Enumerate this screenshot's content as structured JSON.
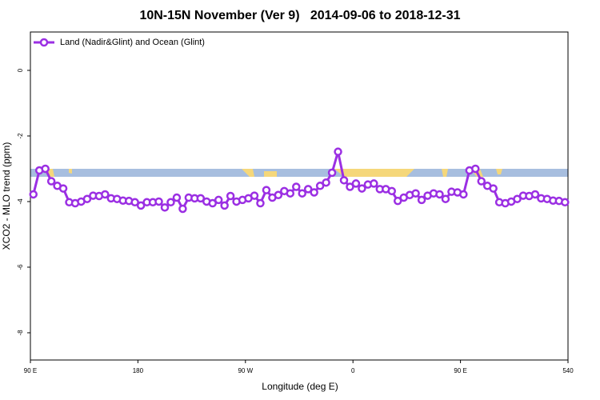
{
  "chart_data": {
    "type": "line",
    "title": "10N-15N November (Ver 9)   2014-09-06 to 2018-12-31",
    "xlabel": "Longitude (deg E)",
    "ylabel": "XCO2 - MLO trend (ppm)",
    "x": [
      92.5,
      97.5,
      102.5,
      107.5,
      112.5,
      117.5,
      122.5,
      127.5,
      132.5,
      137.5,
      142.5,
      147.5,
      152.5,
      157.5,
      162.5,
      167.5,
      172.5,
      177.5,
      182.5,
      187.5,
      192.5,
      197.5,
      202.5,
      207.5,
      212.5,
      217.5,
      222.5,
      227.5,
      232.5,
      237.5,
      242.5,
      247.5,
      252.5,
      257.5,
      262.5,
      267.5,
      272.5,
      277.5,
      282.5,
      287.5,
      292.5,
      297.5,
      302.5,
      307.5,
      312.5,
      317.5,
      322.5,
      327.5,
      332.5,
      337.5,
      342.5,
      347.5,
      352.5,
      357.5,
      362.5,
      367.5,
      372.5,
      377.5,
      382.5,
      387.5,
      392.5,
      397.5,
      402.5,
      407.5,
      412.5,
      417.5,
      422.5,
      427.5,
      432.5,
      437.5,
      442.5,
      447.5,
      452.5,
      457.5,
      462.5,
      467.5,
      472.5,
      477.5,
      482.5,
      487.5,
      492.5,
      497.5,
      502.5,
      507.5,
      512.5,
      517.5,
      522.5,
      527.5,
      532.5,
      537.5
    ],
    "series": [
      {
        "name": "Land (Nadir&Glint) and Ocean (Glint)",
        "color": "#9b2fe3",
        "values": [
          -3.78,
          -3.05,
          -3.0,
          -3.38,
          -3.52,
          -3.6,
          -4.02,
          -4.05,
          -4.0,
          -3.92,
          -3.82,
          -3.83,
          -3.78,
          -3.9,
          -3.92,
          -3.97,
          -3.98,
          -4.02,
          -4.12,
          -4.02,
          -4.02,
          -4.0,
          -4.18,
          -4.02,
          -3.88,
          -4.22,
          -3.88,
          -3.9,
          -3.9,
          -4.0,
          -4.05,
          -3.95,
          -4.12,
          -3.83,
          -4.0,
          -3.95,
          -3.9,
          -3.82,
          -4.05,
          -3.65,
          -3.88,
          -3.8,
          -3.68,
          -3.75,
          -3.55,
          -3.75,
          -3.62,
          -3.72,
          -3.52,
          -3.42,
          -3.12,
          -2.48,
          -3.35,
          -3.55,
          -3.45,
          -3.6,
          -3.48,
          -3.45,
          -3.62,
          -3.62,
          -3.68,
          -3.98,
          -3.88,
          -3.8,
          -3.75,
          -3.95,
          -3.82,
          -3.75,
          -3.78,
          -3.92,
          -3.7,
          -3.72,
          -3.78,
          -3.05,
          -3.0,
          -3.38,
          -3.52,
          -3.6,
          -4.02,
          -4.05,
          -4.0,
          -3.92,
          -3.82,
          -3.83,
          -3.78,
          -3.9,
          -3.92,
          -3.97,
          -3.98,
          -4.02
        ]
      }
    ],
    "xlim": [
      90,
      540
    ],
    "xticks": [
      {
        "value": 90,
        "label": "90 E"
      },
      180,
      {
        "value": 270,
        "label": "90 W"
      },
      {
        "value": 360,
        "label": "0"
      },
      {
        "value": 450,
        "label": "90 E"
      },
      540
    ],
    "ylim": [
      -8.83,
      1.17
    ],
    "yticks": [
      0,
      -2,
      -4,
      -6,
      -8
    ],
    "legend": "top-left"
  }
}
